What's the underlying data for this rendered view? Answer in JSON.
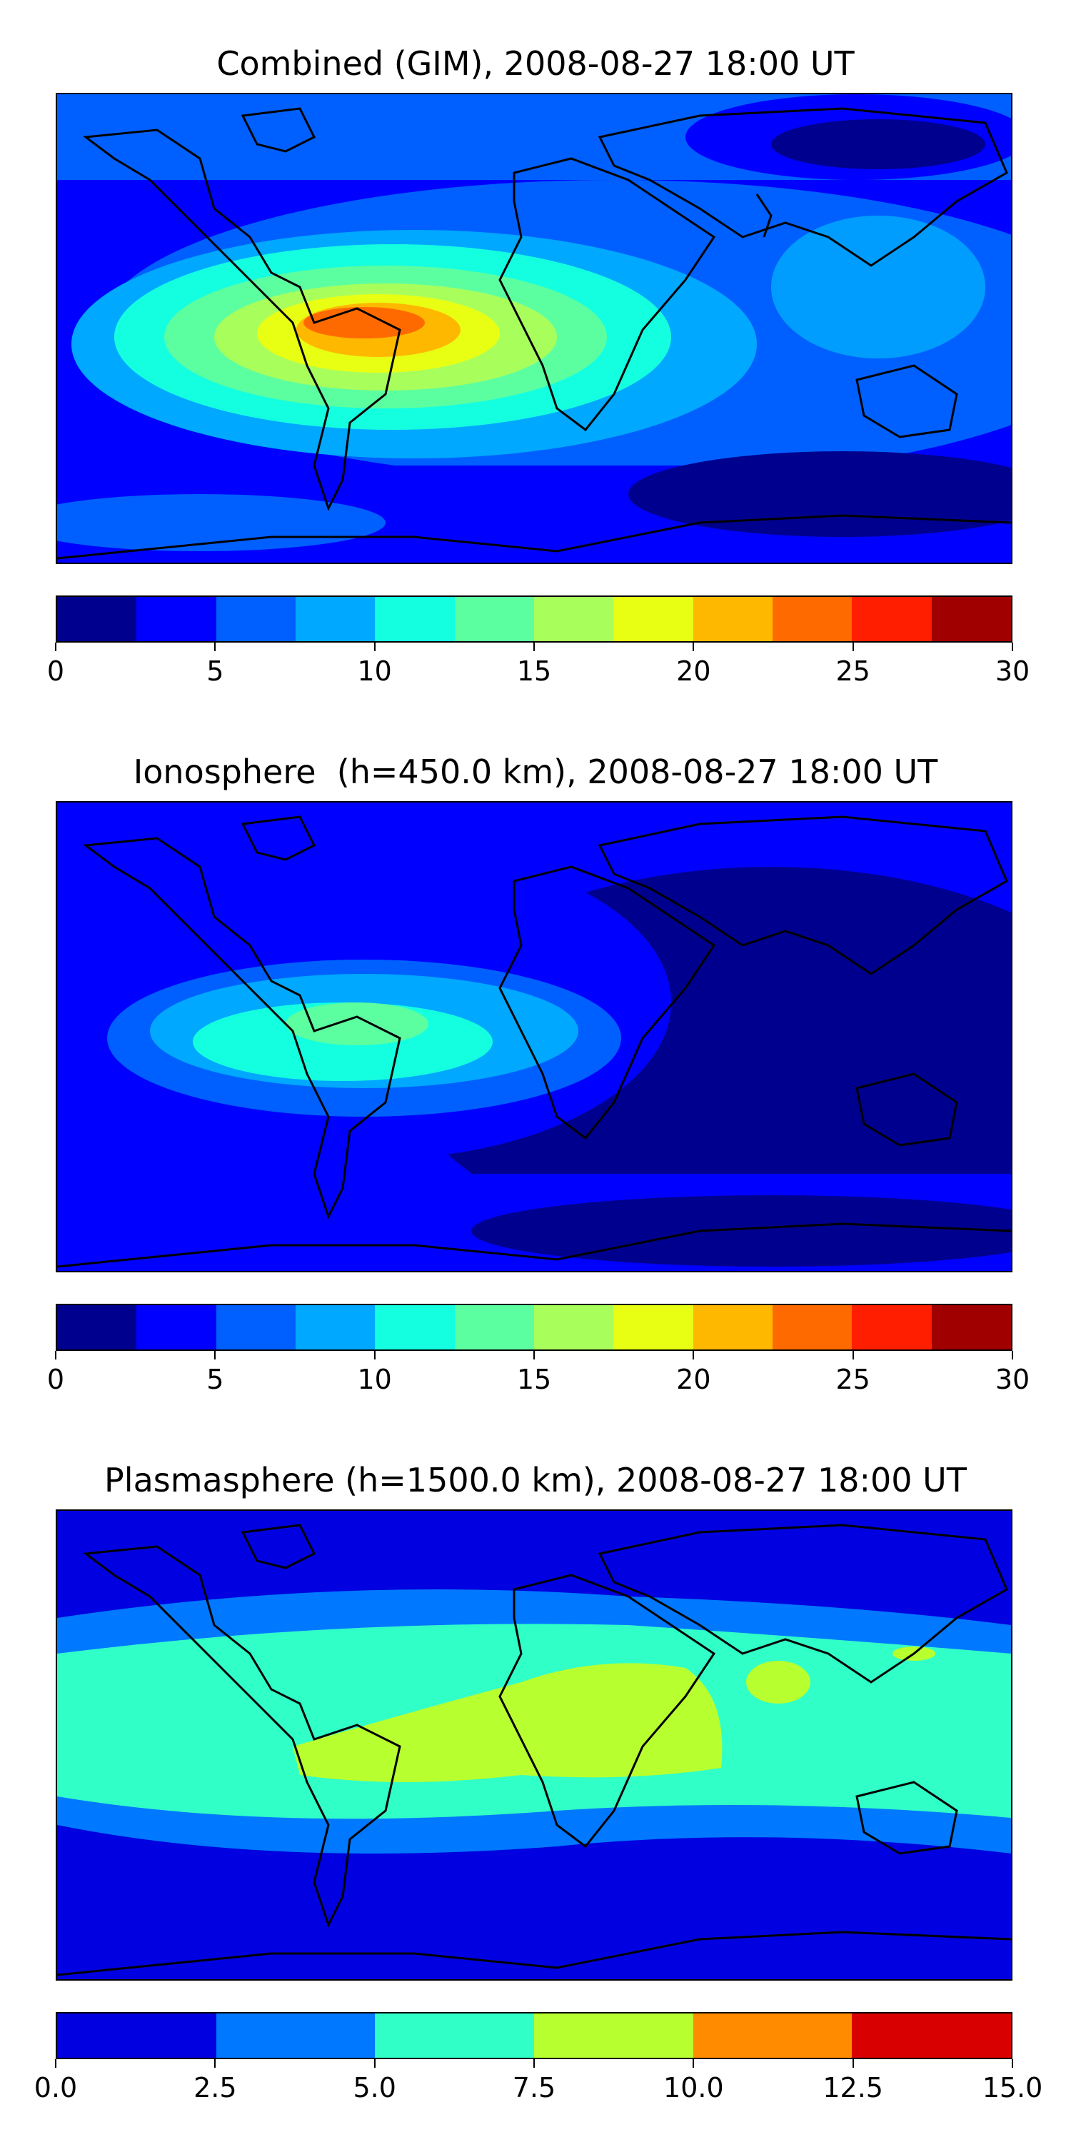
{
  "panels": [
    {
      "title": "Combined (GIM), 2008-08-27 18:00 UT",
      "colorbar": {
        "ticks": [
          "0",
          "5",
          "10",
          "15",
          "20",
          "25",
          "30"
        ],
        "range": [
          0,
          30
        ],
        "colors": [
          "#00008f",
          "#0000ff",
          "#0060ff",
          "#00a8ff",
          "#14ffe0",
          "#5cffa0",
          "#a8ff5c",
          "#e8ff14",
          "#ffb800",
          "#ff6a00",
          "#ff1e00",
          "#a00000"
        ]
      }
    },
    {
      "title": "Ionosphere  (h=450.0 km), 2008-08-27 18:00 UT",
      "colorbar": {
        "ticks": [
          "0",
          "5",
          "10",
          "15",
          "20",
          "25",
          "30"
        ],
        "range": [
          0,
          30
        ],
        "colors": [
          "#00008f",
          "#0000ff",
          "#0060ff",
          "#00a8ff",
          "#14ffe0",
          "#5cffa0",
          "#a8ff5c",
          "#e8ff14",
          "#ffb800",
          "#ff6a00",
          "#ff1e00",
          "#a00000"
        ]
      }
    },
    {
      "title": "Plasmasphere (h=1500.0 km), 2008-08-27 18:00 UT",
      "colorbar": {
        "ticks": [
          "0.0",
          "2.5",
          "5.0",
          "7.5",
          "10.0",
          "12.5",
          "15.0"
        ],
        "range": [
          0,
          15
        ],
        "colors": [
          "#0000e0",
          "#0078ff",
          "#30ffc8",
          "#b8ff30",
          "#ff8c00",
          "#d80000"
        ]
      }
    }
  ]
}
